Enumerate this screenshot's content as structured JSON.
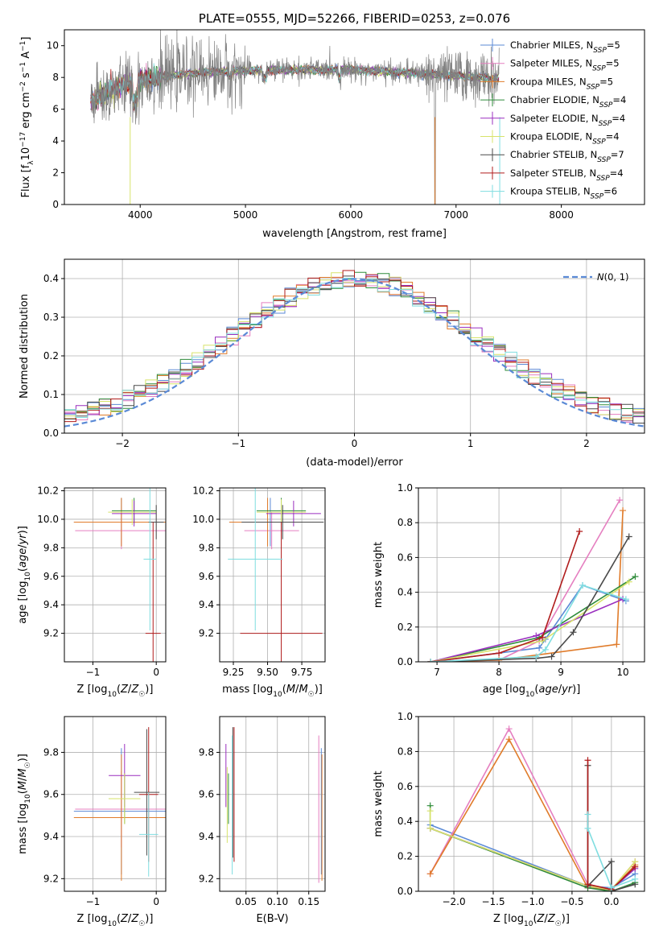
{
  "colors": {
    "Chabrier MILES": "#5b8ad6",
    "Salpeter MILES": "#e57fc0",
    "Kroupa MILES": "#e07b2a",
    "Chabrier ELODIE": "#2e8b3a",
    "Salpeter ELODIE": "#9a2fbf",
    "Kroupa ELODIE": "#d7e36a",
    "Chabrier STELIB": "#4a4a4a",
    "Salpeter STELIB": "#b01c1c",
    "Kroupa STELIB": "#7fdde0"
  },
  "chart_data": [
    {
      "id": "spectrum",
      "type": "line",
      "title": "PLATE=0555, MJD=52266, FIBERID=0253, z=0.076",
      "xlabel": "wavelength [Angstrom, rest frame]",
      "ylabel": "Flux [f_λ 10^-17 erg cm^-2 s^-1 A^-1]",
      "xlim": [
        3280,
        8790
      ],
      "ylim": [
        0,
        11
      ],
      "xticks": [
        "4000",
        "5000",
        "6000",
        "7000",
        "8000"
      ],
      "yticks": [
        "0",
        "2",
        "4",
        "6",
        "8",
        "10"
      ],
      "grid": false,
      "legend_position": "top-right",
      "data_range": [
        3530,
        7410
      ],
      "legend": [
        "Chabrier MILES, N_SSP=5",
        "Salpeter MILES, N_SSP=5",
        "Kroupa MILES, N_SSP=5",
        "Chabrier ELODIE, N_SSP=4",
        "Salpeter ELODIE, N_SSP=4",
        "Kroupa ELODIE, N_SSP=4",
        "Chabrier STELIB, N_SSP=7",
        "Salpeter STELIB, N_SSP=4",
        "Kroupa STELIB, N_SSP=6"
      ]
    },
    {
      "id": "residuals",
      "type": "line",
      "xlabel": "(data-model)/error",
      "ylabel": "Normed distribution",
      "xlim": [
        -2.5,
        2.5
      ],
      "ylim": [
        0,
        0.45
      ],
      "xticks": [
        "−2",
        "−1",
        "0",
        "1",
        "2"
      ],
      "yticks": [
        "0.0",
        "0.1",
        "0.2",
        "0.3",
        "0.4"
      ],
      "grid": true,
      "legend_position": "top-right",
      "legend": [
        "N(0,1)"
      ],
      "series": [
        {
          "name": "N(0,1)",
          "style": "dashed",
          "color": "#5b8ad6"
        }
      ]
    },
    {
      "id": "age_vs_Z",
      "type": "scatter",
      "xlabel": "Z [log10(Z/Z☉)]",
      "ylabel": "age [log10(age/yr)]",
      "xlim": [
        -1.45,
        0.15
      ],
      "ylim": [
        9.0,
        10.22
      ],
      "xticks": [
        "−1",
        "0"
      ],
      "yticks": [
        "9.2",
        "9.4",
        "9.6",
        "9.8",
        "10.0",
        "10.2"
      ],
      "grid": true,
      "points": [
        {
          "model": "Chabrier MILES",
          "x": -0.55,
          "xerr": 0.75,
          "y": 9.98,
          "yerr": 0.17
        },
        {
          "model": "Salpeter MILES",
          "x": -0.55,
          "xerr": 0.73,
          "y": 9.92,
          "yerr": 0.13
        },
        {
          "model": "Kroupa MILES",
          "x": -0.55,
          "xerr": 0.75,
          "y": 9.98,
          "yerr": 0.17
        },
        {
          "model": "Chabrier ELODIE",
          "x": -0.35,
          "xerr": 0.35,
          "y": 10.06,
          "yerr": 0.09
        },
        {
          "model": "Salpeter ELODIE",
          "x": -0.35,
          "xerr": 0.35,
          "y": 10.04,
          "yerr": 0.09
        },
        {
          "model": "Kroupa ELODIE",
          "x": -0.38,
          "xerr": 0.38,
          "y": 10.05,
          "yerr": 0.09
        },
        {
          "model": "Chabrier STELIB",
          "x": 0.0,
          "xerr": 0.12,
          "y": 9.98,
          "yerr": 0.12
        },
        {
          "model": "Salpeter STELIB",
          "x": -0.05,
          "xerr": 0.12,
          "y": 9.2,
          "yerr": 0.78
        },
        {
          "model": "Kroupa STELIB",
          "x": -0.1,
          "xerr": 0.1,
          "y": 9.72,
          "yerr": 0.5
        }
      ]
    },
    {
      "id": "age_vs_mass",
      "type": "scatter",
      "xlabel": "mass [log10(M/M☉)]",
      "ylabel": "",
      "xlim": [
        9.15,
        9.92
      ],
      "ylim": [
        9.0,
        10.22
      ],
      "xticks": [
        "9.25",
        "9.50",
        "9.75"
      ],
      "yticks": [
        "9.2",
        "9.4",
        "9.6",
        "9.8",
        "10.0",
        "10.2"
      ],
      "grid": true,
      "points": [
        {
          "model": "Chabrier MILES",
          "x": 9.52,
          "xerr": 0.3,
          "y": 9.98,
          "yerr": 0.17
        },
        {
          "model": "Salpeter MILES",
          "x": 9.53,
          "xerr": 0.2,
          "y": 9.92,
          "yerr": 0.13
        },
        {
          "model": "Kroupa MILES",
          "x": 9.5,
          "xerr": 0.28,
          "y": 9.98,
          "yerr": 0.17
        },
        {
          "model": "Chabrier ELODIE",
          "x": 9.6,
          "xerr": 0.18,
          "y": 10.06,
          "yerr": 0.09
        },
        {
          "model": "Salpeter ELODIE",
          "x": 9.69,
          "xerr": 0.2,
          "y": 10.04,
          "yerr": 0.09
        },
        {
          "model": "Kroupa ELODIE",
          "x": 9.6,
          "xerr": 0.18,
          "y": 10.05,
          "yerr": 0.09
        },
        {
          "model": "Chabrier STELIB",
          "x": 9.61,
          "xerr": 0.3,
          "y": 9.98,
          "yerr": 0.12
        },
        {
          "model": "Salpeter STELIB",
          "x": 9.6,
          "xerr": 0.3,
          "y": 9.2,
          "yerr": 0.78
        },
        {
          "model": "Kroupa STELIB",
          "x": 9.41,
          "xerr": 0.2,
          "y": 9.72,
          "yerr": 0.5
        }
      ]
    },
    {
      "id": "weight_vs_age",
      "type": "line",
      "xlabel": "age [log10(age/yr)]",
      "ylabel": "mass weight",
      "xlim": [
        6.7,
        10.35
      ],
      "ylim": [
        0,
        1
      ],
      "xticks": [
        "7",
        "8",
        "9",
        "10"
      ],
      "yticks": [
        "0.0",
        "0.2",
        "0.4",
        "0.6",
        "0.8",
        "1.0"
      ],
      "grid": true,
      "series": [
        {
          "name": "Chabrier MILES",
          "x": [
            6.9,
            8.65,
            8.75,
            9.35,
            10.05
          ],
          "y": [
            0.0,
            0.08,
            0.13,
            0.44,
            0.35
          ]
        },
        {
          "name": "Salpeter MILES",
          "x": [
            6.9,
            8.0,
            8.65,
            9.95
          ],
          "y": [
            0.0,
            0.01,
            0.12,
            0.93
          ]
        },
        {
          "name": "Kroupa MILES",
          "x": [
            6.9,
            8.0,
            9.9,
            10.0
          ],
          "y": [
            0.0,
            0.01,
            0.1,
            0.87
          ]
        },
        {
          "name": "Chabrier ELODIE",
          "x": [
            6.9,
            8.65,
            10.2
          ],
          "y": [
            0.0,
            0.14,
            0.49
          ]
        },
        {
          "name": "Salpeter ELODIE",
          "x": [
            6.9,
            8.6,
            10.0
          ],
          "y": [
            0.0,
            0.15,
            0.36
          ]
        },
        {
          "name": "Kroupa ELODIE",
          "x": [
            6.9,
            8.7,
            10.1
          ],
          "y": [
            0.0,
            0.12,
            0.46
          ]
        },
        {
          "name": "Chabrier STELIB",
          "x": [
            6.9,
            8.6,
            8.85,
            9.2,
            10.1
          ],
          "y": [
            0.0,
            0.02,
            0.03,
            0.17,
            0.72
          ]
        },
        {
          "name": "Salpeter STELIB",
          "x": [
            6.9,
            8.0,
            8.7,
            9.3
          ],
          "y": [
            0.0,
            0.05,
            0.14,
            0.75
          ]
        },
        {
          "name": "Kroupa STELIB",
          "x": [
            6.9,
            8.6,
            8.75,
            9.35,
            10.05
          ],
          "y": [
            0.0,
            0.03,
            0.07,
            0.44,
            0.36
          ]
        }
      ]
    },
    {
      "id": "mass_vs_Z",
      "type": "scatter",
      "xlabel": "Z [log10(Z/Z☉)]",
      "ylabel": "mass [log10(M/M☉)]",
      "xlim": [
        -1.45,
        0.15
      ],
      "ylim": [
        9.14,
        9.97
      ],
      "xticks": [
        "−1",
        "0"
      ],
      "yticks": [
        "9.2",
        "9.4",
        "9.6",
        "9.8"
      ],
      "grid": true,
      "points": [
        {
          "model": "Chabrier MILES",
          "x": -0.55,
          "xerr": 0.75,
          "y": 9.52,
          "yerr": 0.3
        },
        {
          "model": "Salpeter MILES",
          "x": -0.55,
          "xerr": 0.73,
          "y": 9.53,
          "yerr": 0.18
        },
        {
          "model": "Kroupa MILES",
          "x": -0.55,
          "xerr": 0.75,
          "y": 9.49,
          "yerr": 0.3
        },
        {
          "model": "Chabrier ELODIE",
          "x": -0.5,
          "xerr": 0.25,
          "y": 9.58,
          "yerr": 0.12
        },
        {
          "model": "Salpeter ELODIE",
          "x": -0.5,
          "xerr": 0.25,
          "y": 9.69,
          "yerr": 0.15
        },
        {
          "model": "Kroupa ELODIE",
          "x": -0.5,
          "xerr": 0.25,
          "y": 9.58,
          "yerr": 0.12
        },
        {
          "model": "Chabrier STELIB",
          "x": -0.15,
          "xerr": 0.2,
          "y": 9.61,
          "yerr": 0.3
        },
        {
          "model": "Salpeter STELIB",
          "x": -0.12,
          "xerr": 0.15,
          "y": 9.6,
          "yerr": 0.32
        },
        {
          "model": "Kroupa STELIB",
          "x": -0.12,
          "xerr": 0.15,
          "y": 9.41,
          "yerr": 0.2
        }
      ]
    },
    {
      "id": "mass_vs_EBV",
      "type": "scatter",
      "xlabel": "E(B-V)",
      "ylabel": "",
      "xlim": [
        0.008,
        0.176
      ],
      "ylim": [
        9.14,
        9.97
      ],
      "xticks": [
        "0.05",
        "0.10",
        "0.15"
      ],
      "yticks": [
        "9.2",
        "9.4",
        "9.6",
        "9.8"
      ],
      "grid": true,
      "points": [
        {
          "model": "Chabrier MILES",
          "x": 0.17,
          "y": 9.52,
          "yerr": 0.3
        },
        {
          "model": "Salpeter MILES",
          "x": 0.166,
          "y": 9.53,
          "yerr": 0.35
        },
        {
          "model": "Kroupa MILES",
          "x": 0.171,
          "y": 9.49,
          "yerr": 0.3
        },
        {
          "model": "Chabrier ELODIE",
          "x": 0.022,
          "y": 9.58,
          "yerr": 0.12
        },
        {
          "model": "Salpeter ELODIE",
          "x": 0.018,
          "y": 9.69,
          "yerr": 0.15
        },
        {
          "model": "Kroupa ELODIE",
          "x": 0.02,
          "y": 9.55,
          "yerr": 0.18
        },
        {
          "model": "Chabrier STELIB",
          "x": 0.029,
          "y": 9.61,
          "yerr": 0.31
        },
        {
          "model": "Salpeter STELIB",
          "x": 0.031,
          "y": 9.6,
          "yerr": 0.32
        },
        {
          "model": "Kroupa STELIB",
          "x": 0.028,
          "y": 9.55,
          "yerr": 0.33
        }
      ]
    },
    {
      "id": "weight_vs_Z",
      "type": "line",
      "xlabel": "Z [log10(Z/Z☉)]",
      "ylabel": "mass weight",
      "xlim": [
        -2.45,
        0.42
      ],
      "ylim": [
        0,
        1
      ],
      "xticks": [
        "−2.0",
        "−1.5",
        "−1.0",
        "−0.5",
        "0.0"
      ],
      "yticks": [
        "0.0",
        "0.2",
        "0.4",
        "0.6",
        "0.8",
        "1.0"
      ],
      "grid": true,
      "series": [
        {
          "name": "Chabrier MILES",
          "x": [
            -2.3,
            -0.3,
            0.0,
            0.3
          ],
          "y": [
            0.38,
            0.03,
            0.02,
            0.1
          ]
        },
        {
          "name": "Salpeter MILES",
          "x": [
            -2.3,
            -1.3,
            -0.3,
            0.0,
            0.3
          ],
          "y": [
            0.1,
            0.93,
            0.04,
            0.01,
            0.17
          ]
        },
        {
          "name": "Kroupa MILES",
          "x": [
            -2.3,
            -1.3,
            -0.3,
            0.0,
            0.3
          ],
          "y": [
            0.1,
            0.87,
            0.02,
            0.01,
            0.15
          ]
        },
        {
          "name": "Chabrier ELODIE",
          "x": [
            -2.3,
            -2.3,
            -0.3,
            0.0,
            0.3
          ],
          "y": [
            0.49,
            0.36,
            0.02,
            0.0,
            0.05
          ]
        },
        {
          "name": "Salpeter ELODIE",
          "x": [
            -2.3,
            -0.3,
            0.0,
            0.3
          ],
          "y": [
            0.36,
            0.03,
            0.01,
            0.13
          ]
        },
        {
          "name": "Kroupa ELODIE",
          "x": [
            -2.3,
            -2.3,
            -0.3,
            0.0,
            0.3
          ],
          "y": [
            0.46,
            0.36,
            0.03,
            0.01,
            0.17
          ]
        },
        {
          "name": "Chabrier STELIB",
          "x": [
            -0.3,
            -0.3,
            0.0,
            0.0,
            0.3
          ],
          "y": [
            0.72,
            0.03,
            0.17,
            0.0,
            0.04
          ]
        },
        {
          "name": "Salpeter STELIB",
          "x": [
            -0.3,
            -0.3,
            0.0,
            0.3
          ],
          "y": [
            0.75,
            0.04,
            0.01,
            0.14
          ]
        },
        {
          "name": "Kroupa STELIB",
          "x": [
            -0.3,
            -0.3,
            0.0,
            0.3
          ],
          "y": [
            0.44,
            0.36,
            0.02,
            0.07
          ]
        }
      ]
    }
  ]
}
